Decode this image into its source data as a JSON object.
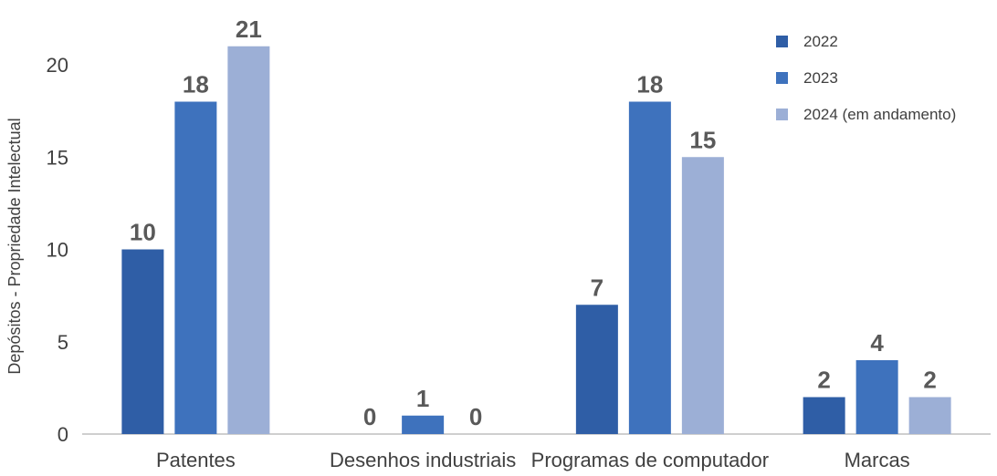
{
  "chart_data": {
    "type": "bar",
    "title": "",
    "xlabel": "",
    "ylabel": "Depósitos - Propriedade Intelectual",
    "categories": [
      "Patentes",
      "Desenhos industriais",
      "Programas de computador",
      "Marcas"
    ],
    "series": [
      {
        "name": "2022",
        "color": "#2f5ea6",
        "values": [
          10,
          0,
          7,
          2
        ]
      },
      {
        "name": "2023",
        "color": "#3e72bd",
        "values": [
          18,
          1,
          18,
          4
        ]
      },
      {
        "name": "2024 (em andamento)",
        "color": "#9cafd6",
        "values": [
          21,
          0,
          15,
          2
        ]
      }
    ],
    "ylim": [
      0,
      20
    ],
    "yticks": [
      0,
      5,
      10,
      15,
      20
    ],
    "grid": false,
    "legend": "top-right"
  }
}
